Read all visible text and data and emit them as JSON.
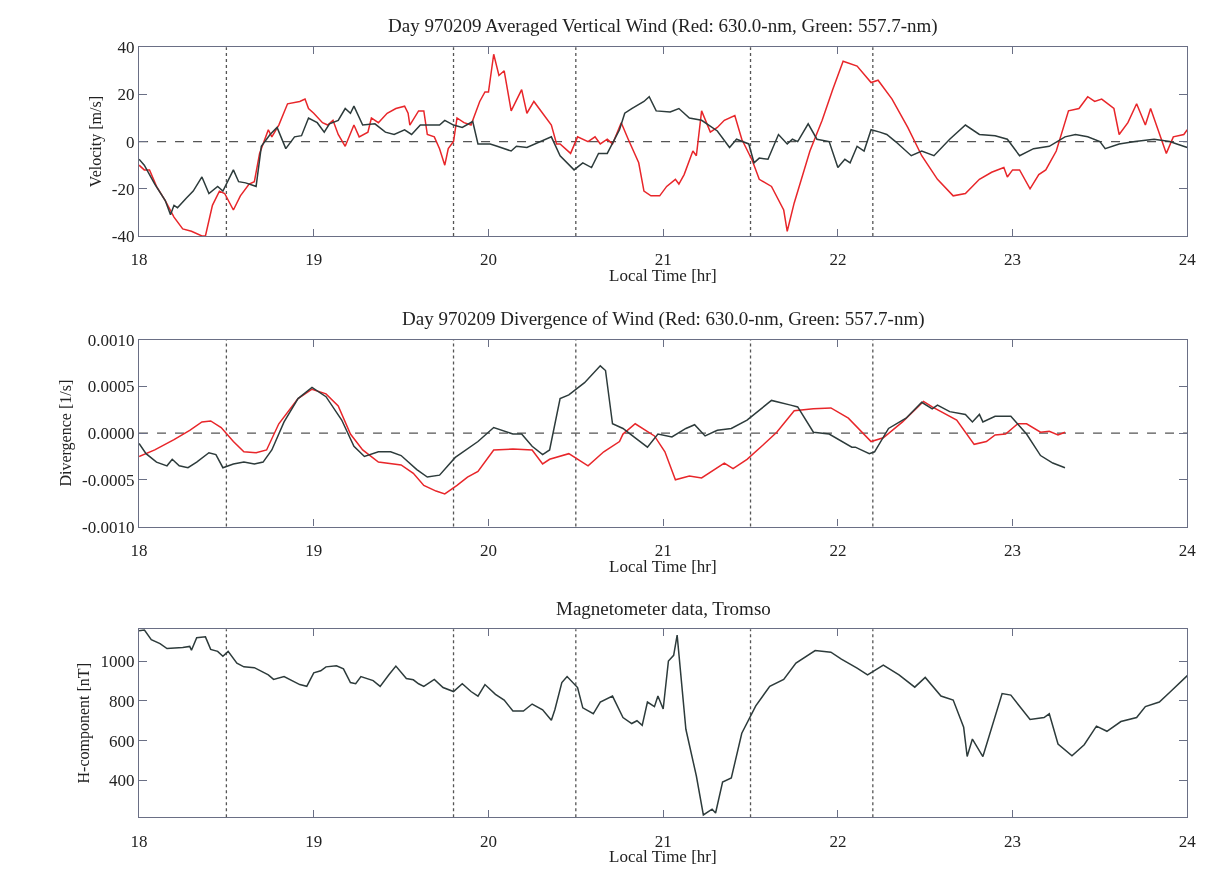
{
  "chart_data": [
    {
      "type": "line",
      "title": "Day 970209 Averaged Vertical Wind (Red: 630.0-nm, Green: 557.7-nm)",
      "xlabel": "Local Time [hr]",
      "ylabel": "Velocity [m/s]",
      "xlim": [
        18,
        24
      ],
      "xticks": [
        18,
        19,
        20,
        21,
        22,
        23,
        24
      ],
      "ylim": [
        -40,
        40
      ],
      "yticks": [
        -40,
        -20,
        0,
        20,
        40
      ],
      "grid": false,
      "marker": "none",
      "line_style": "solid",
      "series": [
        {
          "color": "#e8262a",
          "x": [
            18.0,
            18.03,
            18.06,
            18.1,
            18.15,
            18.2,
            18.25,
            18.3,
            18.36,
            18.38,
            18.42,
            18.46,
            18.49,
            18.54,
            18.58,
            18.63,
            18.66,
            18.69,
            18.74,
            18.76,
            18.8,
            18.85,
            18.92,
            18.95,
            18.97,
            19.0,
            19.05,
            19.08,
            19.11,
            19.14,
            19.18,
            19.23,
            19.26,
            19.31,
            19.33,
            19.37,
            19.42,
            19.47,
            19.52,
            19.54,
            19.55,
            19.6,
            19.63,
            19.65,
            19.69,
            19.72,
            19.75,
            19.77,
            19.8,
            19.82,
            19.86,
            19.9,
            19.95,
            19.98,
            20.0,
            20.03,
            20.06,
            20.09,
            20.13,
            20.19,
            20.22,
            20.26,
            20.36,
            20.39,
            20.41,
            20.47,
            20.51,
            20.57,
            20.61,
            20.64,
            20.68,
            20.71,
            20.76,
            20.8,
            20.86,
            20.89,
            20.93,
            20.98,
            21.02,
            21.07,
            21.09,
            21.12,
            21.17,
            21.19,
            21.22,
            21.27,
            21.31,
            21.35,
            21.41,
            21.45,
            21.51,
            21.55,
            21.62,
            21.69,
            21.71,
            21.75,
            21.84,
            21.91,
            21.97,
            22.03,
            22.11,
            22.19,
            22.23,
            22.31,
            22.4,
            22.48,
            22.57,
            22.66,
            22.73,
            22.81,
            22.88,
            22.95,
            22.97,
            23.0,
            23.04,
            23.1,
            23.15,
            23.19,
            23.25,
            23.32,
            23.38,
            23.43,
            23.47,
            23.51,
            23.58,
            23.61,
            23.66,
            23.71,
            23.76,
            23.79,
            23.88,
            23.92,
            23.98,
            24.0
          ],
          "values": [
            -10,
            -12,
            -12,
            -19,
            -25,
            -32,
            -37,
            -38,
            -40,
            -40,
            -27,
            -21,
            -22,
            -29,
            -23,
            -18,
            -17,
            -5,
            5,
            2,
            7,
            16,
            17,
            18,
            14,
            12,
            8,
            7,
            9,
            3,
            -2,
            7,
            2,
            4,
            10,
            8,
            12,
            14,
            15,
            12,
            7,
            13,
            13,
            3,
            2,
            -3,
            -10,
            -3,
            0,
            10,
            8,
            7,
            17,
            21,
            21,
            37,
            28,
            30,
            13,
            22,
            12,
            17,
            7,
            -1,
            -1,
            -5,
            2,
            0,
            2,
            -1,
            1,
            -1,
            8,
            1,
            -9,
            -21,
            -23,
            -23,
            -19,
            -16,
            -18,
            -14,
            -4,
            -6,
            13,
            4,
            6,
            9,
            11,
            1,
            -8,
            -16,
            -19,
            -29,
            -38,
            -26,
            -4,
            9,
            22,
            34,
            32,
            25,
            26,
            18,
            6,
            -6,
            -16,
            -23,
            -22,
            -16,
            -13,
            -11,
            -15,
            -12,
            -12,
            -20,
            -14,
            -12,
            -4,
            13,
            14,
            19,
            17,
            18,
            14,
            3,
            8,
            16,
            7,
            14,
            -5,
            2,
            3,
            5
          ]
        },
        {
          "color": "#2d3b3b",
          "x": [
            18.0,
            18.03,
            18.09,
            18.15,
            18.18,
            18.2,
            18.22,
            18.27,
            18.31,
            18.36,
            18.4,
            18.45,
            18.48,
            18.54,
            18.57,
            18.61,
            18.67,
            18.7,
            18.75,
            18.79,
            18.84,
            18.89,
            18.93,
            18.97,
            19.02,
            19.06,
            19.09,
            19.14,
            19.18,
            19.21,
            19.23,
            19.28,
            19.35,
            19.41,
            19.46,
            19.52,
            19.56,
            19.61,
            19.67,
            19.72,
            19.75,
            19.8,
            19.85,
            19.91,
            19.94,
            20.01,
            20.05,
            20.13,
            20.16,
            20.22,
            20.36,
            20.41,
            20.49,
            20.54,
            20.59,
            20.63,
            20.68,
            20.75,
            20.78,
            20.82,
            20.89,
            20.92,
            20.96,
            21.04,
            21.09,
            21.15,
            21.22,
            21.31,
            21.38,
            21.42,
            21.49,
            21.52,
            21.55,
            21.6,
            21.66,
            21.71,
            21.74,
            21.77,
            21.83,
            21.88,
            21.95,
            22.0,
            22.04,
            22.07,
            22.11,
            22.15,
            22.19,
            22.24,
            22.28,
            22.33,
            22.42,
            22.48,
            22.55,
            22.64,
            22.73,
            22.81,
            22.9,
            22.97,
            23.04,
            23.12,
            23.21,
            23.3,
            23.36,
            23.43,
            23.5,
            23.53,
            23.61,
            23.7,
            23.81,
            23.9,
            23.94,
            24.0
          ],
          "values": [
            -7.5,
            -10,
            -18,
            -25,
            -31,
            -27,
            -28,
            -24,
            -21,
            -15,
            -22,
            -19,
            -21,
            -12,
            -17,
            -17.5,
            -19,
            -2,
            3,
            6,
            -3,
            2,
            2.5,
            10,
            8,
            4,
            7.5,
            9,
            14,
            12,
            15,
            7,
            7.5,
            4,
            3,
            5,
            3,
            7,
            7,
            7,
            9,
            7,
            6,
            8.5,
            -1,
            -1,
            -2,
            -4,
            -2,
            -2.5,
            2,
            -6,
            -12,
            -9,
            -11,
            -5,
            -5,
            5,
            12,
            14,
            17,
            19,
            13,
            12.5,
            14,
            10,
            9,
            4.5,
            -2.5,
            1,
            -1,
            -9,
            -7,
            -7.5,
            3,
            -1,
            1,
            0,
            7.5,
            1,
            0,
            -11,
            -7.5,
            -9,
            -2,
            -4,
            5,
            4,
            3,
            0,
            -6,
            -4,
            -6,
            1,
            7,
            3,
            2.5,
            1,
            -6,
            -3,
            -2,
            2,
            3,
            2,
            0,
            -3,
            -1,
            0,
            1,
            0,
            -1,
            -2.5
          ]
        }
      ],
      "ref_lines": [
        {
          "axis": "y",
          "value": 0,
          "line_style": "dashed",
          "color": "#555555"
        },
        {
          "axis": "x",
          "value": 18.5,
          "line_style": "dotted",
          "color": "#555555"
        },
        {
          "axis": "x",
          "value": 19.8,
          "line_style": "dotted",
          "color": "#555555"
        },
        {
          "axis": "x",
          "value": 20.5,
          "line_style": "dotted",
          "color": "#555555"
        },
        {
          "axis": "x",
          "value": 21.5,
          "line_style": "dotted",
          "color": "#555555"
        },
        {
          "axis": "x",
          "value": 22.2,
          "line_style": "dotted",
          "color": "#555555"
        }
      ]
    },
    {
      "type": "line",
      "title": "Day 970209 Divergence of Wind (Red: 630.0-nm, Green: 557.7-nm)",
      "xlabel": "Local Time [hr]",
      "ylabel": "Divergence [1/s]",
      "xlim": [
        18,
        24
      ],
      "xticks": [
        18,
        19,
        20,
        21,
        22,
        23,
        24
      ],
      "ylim": [
        -0.001,
        0.001
      ],
      "yticks": [
        {
          "value": -0.001,
          "label": "-0.0010"
        },
        {
          "value": -0.0005,
          "label": "-0.0005"
        },
        {
          "value": 0,
          "label": "0.0000"
        },
        {
          "value": 0.0005,
          "label": "0.0005"
        },
        {
          "value": 0.001,
          "label": "0.0010"
        }
      ],
      "grid": false,
      "marker": "none",
      "line_style": "solid",
      "series": [
        {
          "color": "#e8262a",
          "x": [
            18.0,
            18.09,
            18.2,
            18.29,
            18.36,
            18.41,
            18.47,
            18.54,
            18.6,
            18.67,
            18.73,
            18.8,
            18.91,
            18.99,
            19.07,
            19.14,
            19.21,
            19.28,
            19.37,
            19.5,
            19.57,
            19.63,
            19.7,
            19.75,
            19.82,
            19.88,
            19.94,
            20.03,
            20.14,
            20.25,
            20.31,
            20.35,
            20.46,
            20.57,
            20.66,
            20.75,
            20.77,
            20.84,
            20.95,
            21.01,
            21.07,
            21.15,
            21.22,
            21.35,
            21.4,
            21.48,
            21.57,
            21.65,
            21.75,
            21.86,
            21.96,
            22.06,
            22.19,
            22.26,
            22.37,
            22.49,
            22.54,
            22.68,
            22.78,
            22.85,
            22.9,
            22.96,
            23.03,
            23.08,
            23.16,
            23.21,
            23.26,
            23.3
          ],
          "values": [
            -0.00025,
            -0.00018,
            -7e-05,
            3e-05,
            0.00012,
            0.00013,
            6e-05,
            -9e-05,
            -0.0002,
            -0.00021,
            -0.00018,
            0.0001,
            0.00037,
            0.00047,
            0.00042,
            0.00029,
            -1e-05,
            -0.00018,
            -0.00031,
            -0.00034,
            -0.00043,
            -0.00056,
            -0.00062,
            -0.00065,
            -0.00056,
            -0.00047,
            -0.00041,
            -0.00018,
            -0.00017,
            -0.00018,
            -0.00033,
            -0.00028,
            -0.00022,
            -0.00035,
            -0.0002,
            -9e-05,
            -1e-05,
            0.0001,
            -3e-05,
            -0.0002,
            -0.0005,
            -0.00046,
            -0.00048,
            -0.00032,
            -0.00038,
            -0.00028,
            -0.00013,
            1e-05,
            0.00024,
            0.00026,
            0.00027,
            0.00016,
            -9e-05,
            -5e-05,
            0.00012,
            0.00034,
            0.00028,
            0.00014,
            -0.00012,
            -9e-05,
            -2e-05,
            -1e-05,
            0.0001,
            0.0001,
            1e-05,
            2e-05,
            -2e-05,
            1e-05
          ]
        },
        {
          "color": "#2d3b3b",
          "x": [
            18.0,
            18.04,
            18.1,
            18.16,
            18.19,
            18.23,
            18.28,
            18.33,
            18.4,
            18.44,
            18.48,
            18.54,
            18.6,
            18.66,
            18.71,
            18.76,
            18.83,
            18.91,
            18.99,
            19.07,
            19.16,
            19.23,
            19.29,
            19.37,
            19.44,
            19.5,
            19.59,
            19.65,
            19.72,
            19.81,
            19.94,
            20.03,
            20.14,
            20.19,
            20.25,
            20.31,
            20.35,
            20.41,
            20.46,
            20.55,
            20.64,
            20.67,
            20.71,
            20.77,
            20.84,
            20.91,
            20.97,
            21.05,
            21.13,
            21.18,
            21.24,
            21.31,
            21.39,
            21.48,
            21.62,
            21.73,
            21.77,
            21.86,
            21.95,
            22.08,
            22.1,
            22.18,
            22.21,
            22.29,
            22.39,
            22.48,
            22.54,
            22.57,
            22.64,
            22.73,
            22.77,
            22.81,
            22.83,
            22.9,
            22.99,
            23.08,
            23.16,
            23.23,
            23.3
          ],
          "values": [
            -0.00011,
            -0.00022,
            -0.00031,
            -0.00035,
            -0.00028,
            -0.00035,
            -0.00037,
            -0.00031,
            -0.00021,
            -0.00023,
            -0.00037,
            -0.00033,
            -0.00031,
            -0.00033,
            -0.00031,
            -0.00018,
            0.00012,
            0.00037,
            0.00049,
            0.00039,
            0.00014,
            -0.00014,
            -0.00025,
            -0.0002,
            -0.0002,
            -0.00024,
            -0.00039,
            -0.00047,
            -0.00045,
            -0.00026,
            -9e-05,
            6e-05,
            -1e-05,
            -1e-05,
            -0.00014,
            -0.00023,
            -0.00018,
            0.00037,
            0.00041,
            0.00054,
            0.00072,
            0.00067,
            0.0001,
            5e-05,
            -5e-05,
            -0.00015,
            -1e-05,
            -4e-05,
            5e-05,
            9e-05,
            -3e-05,
            3e-05,
            5e-05,
            0.00014,
            0.00035,
            0.0003,
            0.00028,
            1e-05,
            -1e-05,
            -0.00015,
            -0.00015,
            -0.00022,
            -0.0002,
            5e-05,
            0.00016,
            0.00033,
            0.00026,
            0.0003,
            0.00023,
            0.0002,
            0.00012,
            0.0002,
            0.00012,
            0.00018,
            0.00018,
            -1e-05,
            -0.00024,
            -0.00032,
            -0.00037
          ]
        }
      ],
      "ref_lines": [
        {
          "axis": "y",
          "value": 0,
          "line_style": "dashed",
          "color": "#555555"
        },
        {
          "axis": "x",
          "value": 18.5,
          "line_style": "dotted",
          "color": "#555555"
        },
        {
          "axis": "x",
          "value": 19.8,
          "line_style": "dotted",
          "color": "#555555"
        },
        {
          "axis": "x",
          "value": 20.5,
          "line_style": "dotted",
          "color": "#555555"
        },
        {
          "axis": "x",
          "value": 21.5,
          "line_style": "dotted",
          "color": "#555555"
        },
        {
          "axis": "x",
          "value": 22.2,
          "line_style": "dotted",
          "color": "#555555"
        }
      ]
    },
    {
      "type": "line",
      "title": "Magnetometer data, Tromso",
      "xlabel": "Local Time [hr]",
      "ylabel": "H-component [nT]",
      "xlim": [
        18,
        24
      ],
      "xticks": [
        18,
        19,
        20,
        21,
        22,
        23,
        24
      ],
      "ylim": [
        215,
        1160
      ],
      "yticks": [
        400,
        600,
        800,
        1000
      ],
      "grid": false,
      "marker": "none",
      "line_style": "solid",
      "series": [
        {
          "color": "#2d3b3b",
          "x": [
            18.0,
            18.03,
            18.07,
            18.12,
            18.16,
            18.25,
            18.29,
            18.3,
            18.33,
            18.38,
            18.41,
            18.45,
            18.48,
            18.51,
            18.56,
            18.6,
            18.66,
            18.74,
            18.77,
            18.83,
            18.92,
            18.96,
            19.0,
            19.04,
            19.07,
            19.13,
            19.17,
            19.21,
            19.24,
            19.27,
            19.34,
            19.38,
            19.43,
            19.47,
            19.53,
            19.57,
            19.6,
            19.63,
            19.69,
            19.74,
            19.8,
            19.85,
            19.9,
            19.94,
            19.98,
            20.04,
            20.09,
            20.14,
            20.2,
            20.25,
            20.31,
            20.36,
            20.38,
            20.42,
            20.45,
            20.51,
            20.54,
            20.6,
            20.64,
            20.71,
            20.77,
            20.82,
            20.85,
            20.88,
            20.91,
            20.95,
            20.97,
            21.0,
            21.03,
            21.06,
            21.08,
            21.13,
            21.19,
            21.23,
            21.28,
            21.3,
            21.34,
            21.39,
            21.45,
            21.53,
            21.61,
            21.69,
            21.76,
            21.87,
            21.96,
            22.02,
            22.11,
            22.17,
            22.26,
            22.35,
            22.44,
            22.5,
            22.59,
            22.66,
            22.72,
            22.74,
            22.77,
            22.83,
            22.94,
            22.99,
            23.1,
            23.18,
            23.21,
            23.26,
            23.34,
            23.41,
            23.48,
            23.54,
            23.62,
            23.71,
            23.76,
            23.84,
            23.9,
            24.0
          ],
          "values": [
            1153,
            1157,
            1108,
            1088,
            1063,
            1069,
            1074,
            1055,
            1118,
            1122,
            1059,
            1049,
            1024,
            1049,
            990,
            971,
            967,
            931,
            908,
            922,
            882,
            873,
            941,
            951,
            971,
            976,
            961,
            892,
            886,
            922,
            902,
            873,
            931,
            975,
            912,
            906,
            886,
            873,
            908,
            867,
            847,
            886,
            847,
            824,
            882,
            833,
            804,
            749,
            749,
            784,
            755,
            702,
            755,
            892,
            922,
            867,
            765,
            735,
            794,
            824,
            716,
            686,
            700,
            677,
            794,
            771,
            824,
            759,
            1000,
            1029,
            1131,
            657,
            422,
            226,
            255,
            236,
            392,
            412,
            637,
            775,
            873,
            908,
            990,
            1053,
            1045,
            1010,
            965,
            931,
            980,
            931,
            869,
            918,
            824,
            804,
            667,
            520,
            608,
            520,
            837,
            829,
            706,
            716,
            735,
            583,
            524,
            579,
            673,
            647,
            696,
            716,
            771,
            794,
            843,
            927
          ]
        }
      ],
      "ref_lines": [
        {
          "axis": "x",
          "value": 18.5,
          "line_style": "dotted",
          "color": "#555555"
        },
        {
          "axis": "x",
          "value": 19.8,
          "line_style": "dotted",
          "color": "#555555"
        },
        {
          "axis": "x",
          "value": 20.5,
          "line_style": "dotted",
          "color": "#555555"
        },
        {
          "axis": "x",
          "value": 21.5,
          "line_style": "dotted",
          "color": "#555555"
        },
        {
          "axis": "x",
          "value": 22.2,
          "line_style": "dotted",
          "color": "#555555"
        }
      ]
    }
  ]
}
